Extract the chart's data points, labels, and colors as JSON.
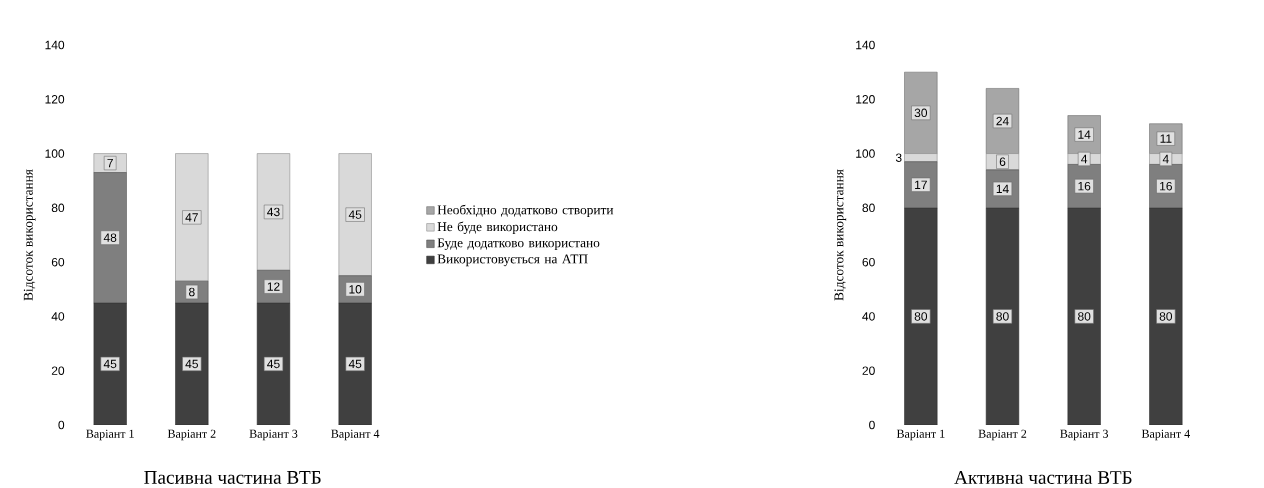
{
  "chart_data": [
    {
      "type": "bar",
      "stacked": true,
      "title": "Пасивна частина ВТБ",
      "ylabel": "Відсоток використання",
      "categories": [
        "Варіант 1",
        "Варіант 2",
        "Варіант 3",
        "Варіант 4"
      ],
      "ylim": [
        0,
        140
      ],
      "yticks": [
        0,
        20,
        40,
        60,
        80,
        100,
        120,
        140
      ],
      "legend": "right",
      "series": [
        {
          "name": "Використовується на АТП",
          "color": "#404040",
          "values": [
            45,
            45,
            45,
            45
          ],
          "value_labels": [
            "45",
            "45",
            "45",
            "45"
          ]
        },
        {
          "name": "Буде додатково використано",
          "color": "#7f7f7f",
          "values": [
            48,
            8,
            12,
            10
          ],
          "value_labels": [
            "48",
            "8",
            "12",
            "10"
          ]
        },
        {
          "name": "Не буде використано",
          "color": "#d9d9d9",
          "values": [
            7,
            47,
            43,
            45
          ],
          "value_labels": [
            "7",
            "47",
            "43",
            "45"
          ]
        },
        {
          "name": "Необхідно додатково створити",
          "color": "#a6a6a6",
          "values": [
            0,
            0,
            0,
            0
          ]
        }
      ]
    },
    {
      "type": "bar",
      "stacked": true,
      "title": "Активна частина ВТБ",
      "ylabel": "Відсоток використання",
      "categories": [
        "Варіант 1",
        "Варіант 2",
        "Варіант 3",
        "Варіант 4"
      ],
      "ylim": [
        0,
        140
      ],
      "yticks": [
        0,
        20,
        40,
        60,
        80,
        100,
        120,
        140
      ],
      "series": [
        {
          "color": "#404040",
          "values": [
            80,
            80,
            80,
            80
          ],
          "value_labels": [
            "80",
            "80",
            "80",
            "80"
          ]
        },
        {
          "color": "#7f7f7f",
          "values": [
            17,
            14,
            16,
            16
          ],
          "value_labels": [
            "17",
            "14",
            "16",
            "16"
          ]
        },
        {
          "color": "#d9d9d9",
          "values": [
            3,
            6,
            4,
            4
          ],
          "value_labels": [
            "3",
            "6",
            "4",
            "4"
          ]
        },
        {
          "color": "#a6a6a6",
          "values": [
            30,
            24,
            14,
            11
          ],
          "value_labels": [
            "30",
            "24",
            "14",
            "11"
          ]
        }
      ]
    }
  ]
}
